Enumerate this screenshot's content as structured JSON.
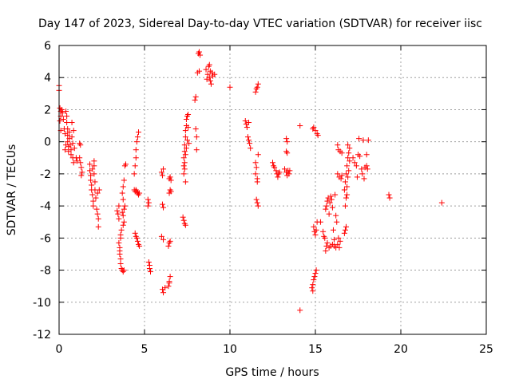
{
  "chart_data": {
    "type": "scatter",
    "title": "Day 147 of 2023, Sidereal Day-to-day VTEC variation (SDTVAR) for receiver iisc",
    "xlabel": "GPS time / hours",
    "ylabel": "SDTVAR / TECUs",
    "xlim": [
      0,
      25
    ],
    "ylim": [
      -12,
      6
    ],
    "xticks": [
      "0",
      "5",
      "10",
      "15",
      "20",
      "25"
    ],
    "yticks": [
      "-12",
      "-10",
      "-8",
      "-6",
      "-4",
      "-2",
      "0",
      "2",
      "4",
      "6"
    ],
    "grid": true,
    "marker": "+",
    "color": "#ff0000",
    "series": [
      {
        "name": "SDTVAR",
        "points": [
          [
            0.0,
            3.5
          ],
          [
            0.0,
            3.2
          ],
          [
            0.05,
            2.1
          ],
          [
            0.1,
            1.9
          ],
          [
            0.1,
            1.6
          ],
          [
            0.05,
            1.3
          ],
          [
            0.1,
            0.7
          ],
          [
            0.15,
            2.0
          ],
          [
            0.2,
            1.8
          ],
          [
            0.25,
            1.4
          ],
          [
            0.3,
            0.8
          ],
          [
            0.35,
            0.5
          ],
          [
            0.4,
            1.9
          ],
          [
            0.45,
            1.6
          ],
          [
            0.45,
            1.2
          ],
          [
            0.5,
            0.8
          ],
          [
            0.5,
            0.4
          ],
          [
            0.5,
            0.0
          ],
          [
            0.55,
            -0.3
          ],
          [
            0.55,
            -0.6
          ],
          [
            0.6,
            0.6
          ],
          [
            0.6,
            0.2
          ],
          [
            0.65,
            -0.2
          ],
          [
            0.7,
            -0.5
          ],
          [
            0.7,
            -0.8
          ],
          [
            0.75,
            1.2
          ],
          [
            0.75,
            0.3
          ],
          [
            0.8,
            -0.1
          ],
          [
            0.8,
            -1.0
          ],
          [
            0.85,
            -1.3
          ],
          [
            0.85,
            0.7
          ],
          [
            0.9,
            -0.4
          ],
          [
            0.4,
            -0.2
          ],
          [
            0.35,
            -0.5
          ],
          [
            1.2,
            -0.1
          ],
          [
            1.25,
            -0.2
          ],
          [
            1.2,
            -1.0
          ],
          [
            1.25,
            -1.3
          ],
          [
            1.3,
            -1.6
          ],
          [
            1.35,
            -1.9
          ],
          [
            1.3,
            -2.1
          ],
          [
            1.0,
            -1.0
          ],
          [
            1.05,
            -1.2
          ],
          [
            1.8,
            -1.4
          ],
          [
            1.8,
            -1.8
          ],
          [
            1.85,
            -2.1
          ],
          [
            1.85,
            -2.4
          ],
          [
            1.9,
            -2.7
          ],
          [
            1.9,
            -3.0
          ],
          [
            1.95,
            -3.3
          ],
          [
            2.0,
            -3.7
          ],
          [
            2.0,
            -4.0
          ],
          [
            2.05,
            -1.5
          ],
          [
            2.05,
            -2.0
          ],
          [
            2.1,
            -2.5
          ],
          [
            2.1,
            -3.0
          ],
          [
            2.15,
            -3.5
          ],
          [
            2.2,
            -4.2
          ],
          [
            2.25,
            -4.5
          ],
          [
            2.3,
            -4.8
          ],
          [
            2.3,
            -5.3
          ],
          [
            2.25,
            -3.2
          ],
          [
            2.35,
            -3.0
          ],
          [
            2.05,
            -1.2
          ],
          [
            1.95,
            -1.7
          ],
          [
            3.4,
            -4.3
          ],
          [
            3.45,
            -4.5
          ],
          [
            3.5,
            -4.8
          ],
          [
            3.5,
            -6.3
          ],
          [
            3.55,
            -6.6
          ],
          [
            3.55,
            -7.0
          ],
          [
            3.6,
            -7.3
          ],
          [
            3.6,
            -7.6
          ],
          [
            3.65,
            -7.9
          ],
          [
            3.7,
            -8.0
          ],
          [
            3.75,
            -8.1
          ],
          [
            3.8,
            -8.0
          ],
          [
            3.7,
            -4.4
          ],
          [
            3.75,
            -4.6
          ],
          [
            3.8,
            -4.2
          ],
          [
            3.85,
            -4.0
          ],
          [
            3.75,
            -3.6
          ],
          [
            3.7,
            -3.2
          ],
          [
            3.75,
            -2.8
          ],
          [
            3.8,
            -2.4
          ],
          [
            3.85,
            -1.5
          ],
          [
            3.9,
            -1.4
          ],
          [
            3.6,
            -5.8
          ],
          [
            3.65,
            -5.5
          ],
          [
            3.75,
            -5.2
          ],
          [
            3.8,
            -5.0
          ],
          [
            3.6,
            -6.0
          ],
          [
            3.55,
            -6.8
          ],
          [
            3.5,
            -4.0
          ],
          [
            4.45,
            -5.7
          ],
          [
            4.5,
            -5.9
          ],
          [
            4.55,
            -6.0
          ],
          [
            4.6,
            -6.2
          ],
          [
            4.65,
            -6.4
          ],
          [
            4.7,
            -6.5
          ],
          [
            4.4,
            -3.0
          ],
          [
            4.45,
            -3.1
          ],
          [
            4.5,
            -3.0
          ],
          [
            4.55,
            -3.1
          ],
          [
            4.6,
            -3.2
          ],
          [
            4.65,
            -3.3
          ],
          [
            4.4,
            -2.0
          ],
          [
            4.45,
            -1.5
          ],
          [
            4.5,
            -1.0
          ],
          [
            4.5,
            -0.5
          ],
          [
            4.55,
            0.0
          ],
          [
            4.6,
            0.3
          ],
          [
            4.65,
            0.6
          ],
          [
            4.7,
            -3.2
          ],
          [
            5.2,
            -3.6
          ],
          [
            5.25,
            -3.8
          ],
          [
            5.2,
            -4.0
          ],
          [
            5.25,
            -7.5
          ],
          [
            5.3,
            -7.7
          ],
          [
            5.3,
            -7.9
          ],
          [
            5.35,
            -8.1
          ],
          [
            6.0,
            -1.9
          ],
          [
            6.05,
            -2.1
          ],
          [
            6.1,
            -1.7
          ],
          [
            6.05,
            -3.9
          ],
          [
            6.1,
            -4.1
          ],
          [
            6.0,
            -5.9
          ],
          [
            6.1,
            -6.1
          ],
          [
            6.05,
            -9.2
          ],
          [
            6.1,
            -9.4
          ],
          [
            6.2,
            -9.1
          ],
          [
            6.4,
            -9.0
          ],
          [
            6.45,
            -8.7
          ],
          [
            6.5,
            -8.4
          ],
          [
            6.45,
            -8.8
          ],
          [
            6.4,
            -6.5
          ],
          [
            6.45,
            -6.3
          ],
          [
            6.5,
            -6.2
          ],
          [
            6.45,
            -3.2
          ],
          [
            6.5,
            -3.0
          ],
          [
            6.55,
            -3.1
          ],
          [
            6.45,
            -2.3
          ],
          [
            6.5,
            -2.2
          ],
          [
            6.55,
            -2.4
          ],
          [
            7.3,
            -1.5
          ],
          [
            7.3,
            -1.0
          ],
          [
            7.35,
            -0.6
          ],
          [
            7.35,
            -0.2
          ],
          [
            7.4,
            0.3
          ],
          [
            7.4,
            0.7
          ],
          [
            7.45,
            1.0
          ],
          [
            7.45,
            1.4
          ],
          [
            7.5,
            1.6
          ],
          [
            7.55,
            1.7
          ],
          [
            7.25,
            -4.7
          ],
          [
            7.3,
            -4.9
          ],
          [
            7.35,
            -5.1
          ],
          [
            7.4,
            -5.2
          ],
          [
            7.3,
            -2.0
          ],
          [
            7.35,
            -1.7
          ],
          [
            7.4,
            -0.8
          ],
          [
            7.45,
            -0.4
          ],
          [
            7.5,
            0.1
          ],
          [
            7.55,
            0.9
          ],
          [
            7.6,
            -0.1
          ],
          [
            7.4,
            -2.5
          ],
          [
            7.35,
            -1.3
          ],
          [
            7.95,
            2.6
          ],
          [
            8.0,
            2.8
          ],
          [
            8.0,
            0.8
          ],
          [
            8.05,
            0.3
          ],
          [
            8.05,
            -0.5
          ],
          [
            8.1,
            4.3
          ],
          [
            8.2,
            4.4
          ],
          [
            8.15,
            5.5
          ],
          [
            8.2,
            5.6
          ],
          [
            8.25,
            5.4
          ],
          [
            8.6,
            4.5
          ],
          [
            8.7,
            4.2
          ],
          [
            8.75,
            4.7
          ],
          [
            8.8,
            4.8
          ],
          [
            8.8,
            4.0
          ],
          [
            8.85,
            3.8
          ],
          [
            8.9,
            3.6
          ],
          [
            8.95,
            4.3
          ],
          [
            9.0,
            4.1
          ],
          [
            9.1,
            4.2
          ],
          [
            8.65,
            3.9
          ],
          [
            8.85,
            4.4
          ],
          [
            10.0,
            3.4
          ],
          [
            10.9,
            1.3
          ],
          [
            10.95,
            1.1
          ],
          [
            11.0,
            0.9
          ],
          [
            11.05,
            0.3
          ],
          [
            11.1,
            0.1
          ],
          [
            11.15,
            -0.1
          ],
          [
            11.2,
            -0.4
          ],
          [
            11.1,
            1.2
          ],
          [
            11.5,
            3.1
          ],
          [
            11.55,
            3.3
          ],
          [
            11.6,
            3.4
          ],
          [
            11.65,
            3.6
          ],
          [
            11.5,
            -1.3
          ],
          [
            11.55,
            -1.6
          ],
          [
            11.5,
            -2.0
          ],
          [
            11.6,
            -2.3
          ],
          [
            11.55,
            -3.6
          ],
          [
            11.6,
            -3.8
          ],
          [
            11.65,
            -4.0
          ],
          [
            11.65,
            -0.8
          ],
          [
            11.6,
            -2.5
          ],
          [
            12.5,
            -1.3
          ],
          [
            12.55,
            -1.5
          ],
          [
            12.6,
            -1.6
          ],
          [
            12.7,
            -1.8
          ],
          [
            12.75,
            -2.0
          ],
          [
            12.8,
            -2.2
          ],
          [
            12.85,
            -2.0
          ],
          [
            12.9,
            -1.9
          ],
          [
            13.3,
            0.2
          ],
          [
            13.35,
            0.0
          ],
          [
            13.3,
            -0.6
          ],
          [
            13.35,
            -0.7
          ],
          [
            13.2,
            -1.7
          ],
          [
            13.3,
            -1.9
          ],
          [
            13.35,
            -2.1
          ],
          [
            13.4,
            -1.8
          ],
          [
            13.45,
            -2.0
          ],
          [
            13.5,
            -1.8
          ],
          [
            14.1,
            -10.5
          ],
          [
            14.1,
            1.0
          ],
          [
            14.85,
            0.8
          ],
          [
            14.9,
            0.9
          ],
          [
            15.0,
            0.7
          ],
          [
            15.1,
            0.5
          ],
          [
            15.15,
            0.4
          ],
          [
            14.9,
            -5.3
          ],
          [
            14.95,
            -5.6
          ],
          [
            15.0,
            -5.8
          ],
          [
            15.05,
            -5.5
          ],
          [
            15.1,
            -5.0
          ],
          [
            14.8,
            -9.1
          ],
          [
            14.85,
            -8.9
          ],
          [
            14.9,
            -8.6
          ],
          [
            14.95,
            -8.4
          ],
          [
            15.0,
            -8.2
          ],
          [
            15.05,
            -8.0
          ],
          [
            14.85,
            -9.3
          ],
          [
            15.3,
            -5.0
          ],
          [
            15.45,
            -5.6
          ],
          [
            15.5,
            -5.9
          ],
          [
            15.55,
            -6.0
          ],
          [
            15.6,
            -6.8
          ],
          [
            15.65,
            -6.5
          ],
          [
            15.7,
            -6.3
          ],
          [
            15.8,
            -6.6
          ],
          [
            15.9,
            -6.5
          ],
          [
            16.0,
            -6.4
          ],
          [
            16.1,
            -6.5
          ],
          [
            16.2,
            -6.6
          ],
          [
            16.3,
            -6.4
          ],
          [
            16.4,
            -6.6
          ],
          [
            15.6,
            -4.2
          ],
          [
            15.65,
            -4.0
          ],
          [
            15.7,
            -3.7
          ],
          [
            15.75,
            -3.5
          ],
          [
            15.8,
            -4.5
          ],
          [
            15.85,
            -3.8
          ],
          [
            15.9,
            -3.4
          ],
          [
            15.95,
            -3.6
          ],
          [
            16.0,
            -4.1
          ],
          [
            16.05,
            -5.5
          ],
          [
            16.1,
            -6.1
          ],
          [
            16.15,
            -3.3
          ],
          [
            16.2,
            -4.6
          ],
          [
            16.25,
            -5.0
          ],
          [
            16.35,
            -6.0
          ],
          [
            16.45,
            -6.2
          ],
          [
            16.3,
            -0.2
          ],
          [
            16.35,
            -0.5
          ],
          [
            16.45,
            -0.6
          ],
          [
            16.55,
            -0.7
          ],
          [
            16.3,
            -2.0
          ],
          [
            16.4,
            -2.2
          ],
          [
            16.5,
            -2.3
          ],
          [
            16.55,
            -2.1
          ],
          [
            16.7,
            -5.7
          ],
          [
            16.75,
            -5.5
          ],
          [
            16.8,
            -5.3
          ],
          [
            16.7,
            -3.0
          ],
          [
            16.75,
            -2.5
          ],
          [
            16.8,
            -2.0
          ],
          [
            16.85,
            -1.5
          ],
          [
            16.9,
            -1.0
          ],
          [
            16.95,
            -0.7
          ],
          [
            17.0,
            -0.4
          ],
          [
            16.8,
            -3.5
          ],
          [
            16.85,
            -2.8
          ],
          [
            16.9,
            -2.2
          ],
          [
            16.95,
            -1.8
          ],
          [
            17.0,
            -1.2
          ],
          [
            16.75,
            -4.0
          ],
          [
            16.9,
            -0.2
          ],
          [
            16.85,
            -3.3
          ],
          [
            17.2,
            -1.0
          ],
          [
            17.3,
            -1.3
          ],
          [
            17.4,
            -1.5
          ],
          [
            17.45,
            -2.2
          ],
          [
            17.5,
            -0.8
          ],
          [
            17.6,
            -0.9
          ],
          [
            17.7,
            -1.7
          ],
          [
            17.75,
            -2.0
          ],
          [
            17.8,
            0.1
          ],
          [
            17.9,
            -1.6
          ],
          [
            18.0,
            -1.5
          ],
          [
            18.05,
            -1.7
          ],
          [
            18.1,
            0.1
          ],
          [
            18.0,
            -0.8
          ],
          [
            17.55,
            0.2
          ],
          [
            17.85,
            -2.3
          ],
          [
            19.3,
            -3.3
          ],
          [
            19.35,
            -3.5
          ],
          [
            22.4,
            -3.8
          ]
        ]
      }
    ]
  }
}
